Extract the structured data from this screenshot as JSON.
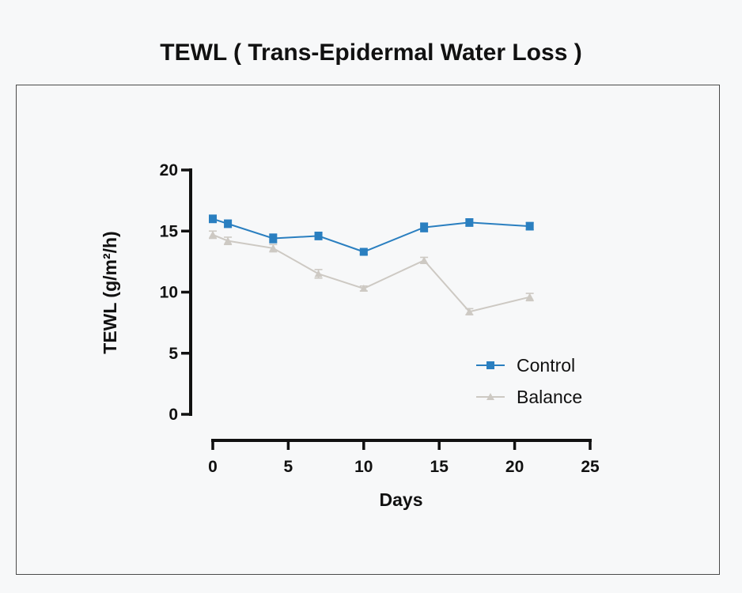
{
  "chart_data": {
    "type": "line",
    "title": "TEWL ( Trans-Epidermal Water Loss )",
    "xlabel": "Days",
    "ylabel": "TEWL (g/m²/h)",
    "xlim": [
      0,
      25
    ],
    "ylim": [
      0,
      20
    ],
    "xticks": [
      "0",
      "5",
      "10",
      "15",
      "20",
      "25"
    ],
    "yticks": [
      "0",
      "5",
      "10",
      "15",
      "20"
    ],
    "grid": false,
    "legend_position": "right",
    "series": [
      {
        "name": "Control",
        "color": "#2a7fc0",
        "marker": "square",
        "x": [
          0,
          1,
          4,
          7,
          10,
          14,
          17,
          21
        ],
        "y": [
          16.0,
          15.6,
          14.4,
          14.6,
          13.3,
          15.3,
          15.7,
          15.4
        ],
        "err": [
          0.3,
          0.3,
          0.35,
          0.3,
          0.2,
          0.35,
          0.3,
          0.3
        ]
      },
      {
        "name": "Balance",
        "color": "#cdc9c3",
        "marker": "triangle",
        "x": [
          0,
          1,
          4,
          7,
          10,
          14,
          17,
          21
        ],
        "y": [
          14.7,
          14.2,
          13.6,
          11.5,
          10.3,
          12.6,
          8.4,
          9.6
        ],
        "err": [
          0.3,
          0.3,
          0.3,
          0.35,
          0.2,
          0.25,
          0.25,
          0.3
        ]
      }
    ]
  }
}
